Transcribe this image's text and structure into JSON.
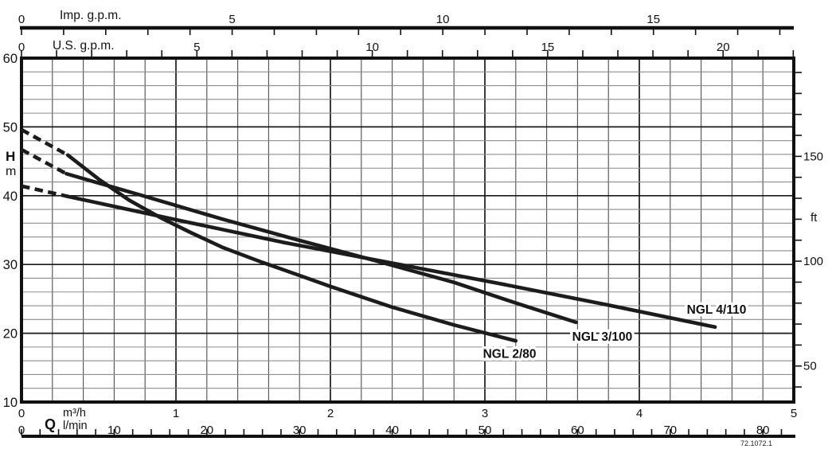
{
  "chart_data": {
    "type": "line",
    "title": "",
    "x_range_m3h": [
      0,
      5
    ],
    "flow_symbol": "Q",
    "figure_code": "72.1072.1",
    "x_unit_axes": {
      "imp_gpm": {
        "label": "Imp. g.p.m.",
        "labeled_ticks": [
          0,
          5,
          10,
          15
        ],
        "minor_tick_step": 1,
        "m3h_per_unit": 0.27276
      },
      "us_gpm": {
        "label": "U.S. g.p.m.",
        "labeled_ticks": [
          0,
          5,
          10,
          15,
          20
        ],
        "minor_tick_step": 1,
        "m3h_per_unit": 0.22712
      },
      "m3h": {
        "label": "m³/h",
        "labeled_ticks": [
          0,
          1,
          2,
          3,
          4,
          5
        ]
      },
      "l_min": {
        "label": "l/min",
        "labeled_ticks": [
          0,
          10,
          20,
          30,
          40,
          50,
          60,
          70,
          80
        ],
        "minor_tick_step": 2,
        "m3h_per_unit": 0.06
      }
    },
    "y_axes": {
      "left": {
        "label": "H",
        "unit": "m",
        "labeled_ticks": [
          60,
          50,
          40,
          30,
          20,
          10
        ],
        "minor_step_m": 2,
        "range_m": [
          10,
          60
        ]
      },
      "right": {
        "label": "ft",
        "labeled_ticks": [
          150,
          100,
          50
        ],
        "minor_tick_step_ft": 10,
        "m_per_ft": 0.3048,
        "tick_range_ft": [
          40,
          190
        ]
      }
    },
    "series": [
      {
        "name": "NGL 2/80",
        "dashed": [
          [
            0,
            49.6
          ],
          [
            0.3,
            45.9
          ]
        ],
        "points": [
          [
            0.3,
            45.9
          ],
          [
            0.5,
            42.4
          ],
          [
            0.7,
            39.3
          ],
          [
            0.9,
            36.8
          ],
          [
            1.1,
            34.6
          ],
          [
            1.3,
            32.5
          ],
          [
            1.56,
            30.3
          ],
          [
            1.8,
            28.4
          ],
          [
            2.0,
            26.8
          ],
          [
            2.4,
            23.8
          ],
          [
            2.8,
            21.2
          ],
          [
            3.2,
            18.9
          ]
        ],
        "label_pos": [
          3.16,
          17.0
        ]
      },
      {
        "name": "NGL 3/100",
        "dashed": [
          [
            0,
            46.7
          ],
          [
            0.29,
            43.2
          ]
        ],
        "points": [
          [
            0.29,
            43.2
          ],
          [
            0.8,
            39.9
          ],
          [
            1.3,
            36.6
          ],
          [
            1.8,
            33.5
          ],
          [
            2.3,
            30.5
          ],
          [
            2.8,
            27.4
          ],
          [
            3.2,
            24.4
          ],
          [
            3.59,
            21.6
          ]
        ],
        "label_pos": [
          3.76,
          19.5
        ]
      },
      {
        "name": "NGL 4/110",
        "dashed": [
          [
            0,
            41.4
          ],
          [
            0.3,
            39.9
          ]
        ],
        "points": [
          [
            0.3,
            39.9
          ],
          [
            1.0,
            36.5
          ],
          [
            1.7,
            33.2
          ],
          [
            2.4,
            30.2
          ],
          [
            3.1,
            27.2
          ],
          [
            3.8,
            24.1
          ],
          [
            4.49,
            20.9
          ]
        ],
        "label_pos": [
          4.5,
          23.4
        ]
      }
    ],
    "colors": {
      "curve": "#1c1c1c",
      "grid_minor_horizontal": "#8c8c8c",
      "grid_minor_vertical": "#4f4f4f",
      "grid_major": "#1a1a1a",
      "axis": "#111111",
      "background": "#ffffff"
    }
  }
}
